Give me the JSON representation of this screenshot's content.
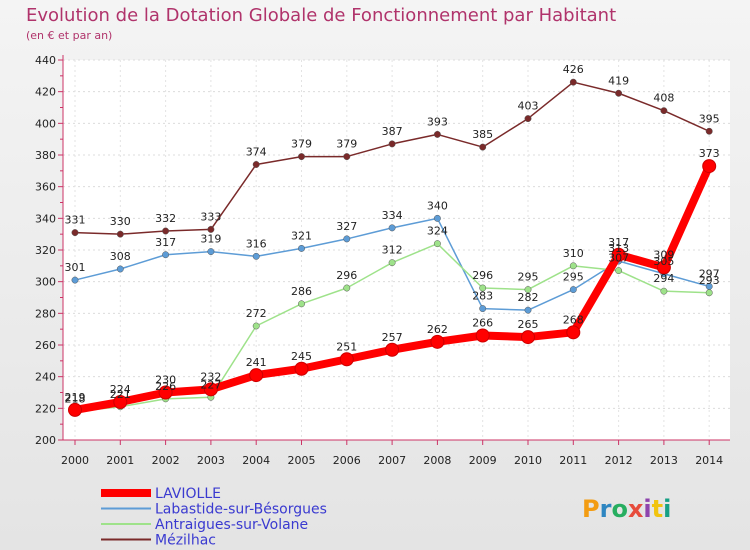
{
  "title": "Evolution de la Dotation Globale de Fonctionnement par Habitant",
  "subtitle": "(en € et par an)",
  "logo_text": "Proxiti",
  "chart_data": {
    "type": "line",
    "title": "Evolution de la Dotation Globale de Fonctionnement par Habitant",
    "subtitle": "(en € et par an)",
    "xlabel": "",
    "ylabel": "",
    "x": [
      "2000",
      "2001",
      "2002",
      "2003",
      "2004",
      "2005",
      "2006",
      "2007",
      "2008",
      "2009",
      "2010",
      "2011",
      "2012",
      "2013",
      "2014"
    ],
    "yticks": [
      200,
      220,
      240,
      260,
      280,
      300,
      320,
      340,
      360,
      380,
      400,
      420,
      440
    ],
    "ylim": [
      200,
      440
    ],
    "grid": true,
    "legend": "bottom-left",
    "series": [
      {
        "name": "LAVIOLLE",
        "color": "#ff0000",
        "emphasis": true,
        "values": [
          219,
          224,
          230,
          232,
          241,
          245,
          251,
          257,
          262,
          266,
          265,
          268,
          317,
          309,
          373
        ]
      },
      {
        "name": "Labastide-sur-Bésorgues",
        "color": "#5d9cd6",
        "emphasis": false,
        "values": [
          301,
          308,
          317,
          319,
          316,
          321,
          327,
          334,
          340,
          283,
          282,
          295,
          313,
          305,
          297
        ]
      },
      {
        "name": "Antraigues-sur-Volane",
        "color": "#9ee28a",
        "emphasis": false,
        "values": [
          218,
          221,
          226,
          227,
          272,
          286,
          296,
          312,
          324,
          296,
          295,
          310,
          307,
          294,
          293
        ]
      },
      {
        "name": "Mézilhac",
        "color": "#7a2a2a",
        "emphasis": false,
        "values": [
          331,
          330,
          332,
          333,
          374,
          379,
          379,
          387,
          393,
          385,
          403,
          426,
          419,
          408,
          395
        ]
      }
    ]
  }
}
